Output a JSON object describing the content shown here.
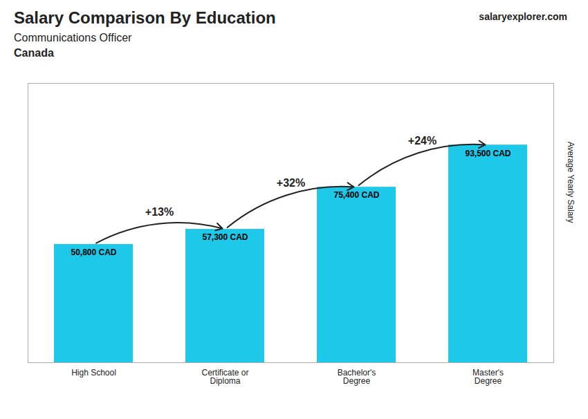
{
  "chart_data": {
    "type": "bar",
    "title": "Salary Comparison By Education",
    "subtitle": "Communications Officer",
    "country": "Canada",
    "source": "salaryexplorer.com",
    "ylabel": "Average Yearly Salary",
    "categories": [
      "High School",
      "Certificate or\nDiploma",
      "Bachelor's\nDegree",
      "Master's\nDegree"
    ],
    "values": [
      50800,
      57300,
      75400,
      93500
    ],
    "value_labels": [
      "50,800 CAD",
      "57,300 CAD",
      "75,400 CAD",
      "93,500 CAD"
    ],
    "data_labels": true,
    "annotations": [
      "+13%",
      "+32%",
      "+24%"
    ],
    "color": "#1ec8e8",
    "ylim": [
      0,
      120000
    ],
    "tick_labels": "x"
  }
}
